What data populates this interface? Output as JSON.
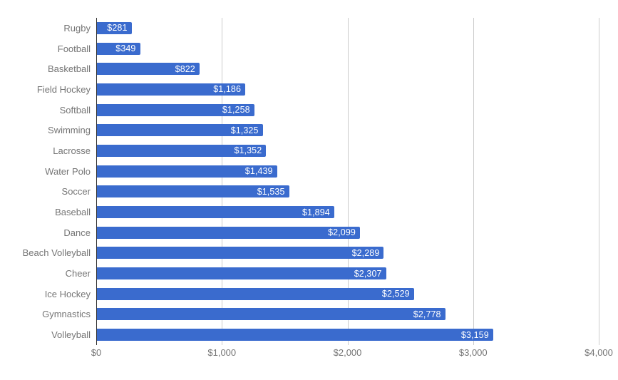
{
  "chart_data": {
    "type": "bar",
    "orientation": "horizontal",
    "title": "",
    "xlabel": "",
    "ylabel": "",
    "categories": [
      "Rugby",
      "Football",
      "Basketball",
      "Field Hockey",
      "Softball",
      "Swimming",
      "Lacrosse",
      "Water Polo",
      "Soccer",
      "Baseball",
      "Dance",
      "Beach Volleyball",
      "Cheer",
      "Ice Hockey",
      "Gymnastics",
      "Volleyball"
    ],
    "values": [
      281,
      349,
      822,
      1186,
      1258,
      1325,
      1352,
      1439,
      1535,
      1894,
      2099,
      2289,
      2307,
      2529,
      2778,
      3159
    ],
    "value_labels": [
      "$281",
      "$349",
      "$822",
      "$1,186",
      "$1,258",
      "$1,325",
      "$1,352",
      "$1,439",
      "$1,535",
      "$1,894",
      "$2,099",
      "$2,289",
      "$2,307",
      "$2,529",
      "$2,778",
      "$3,159"
    ],
    "xlim": [
      0,
      4000
    ],
    "x_ticks": [
      0,
      1000,
      2000,
      3000,
      4000
    ],
    "x_tick_labels": [
      "$0",
      "$1,000",
      "$2,000",
      "$3,000",
      "$4,000"
    ],
    "grid": true,
    "legend": false,
    "colors": {
      "bar": "#3a6bce",
      "bar_value_text": "#ffffff",
      "category_text": "#757575",
      "axis_tick_text": "#757575",
      "gridline": "#cccccc",
      "baseline": "#333333",
      "background": "#ffffff"
    }
  }
}
